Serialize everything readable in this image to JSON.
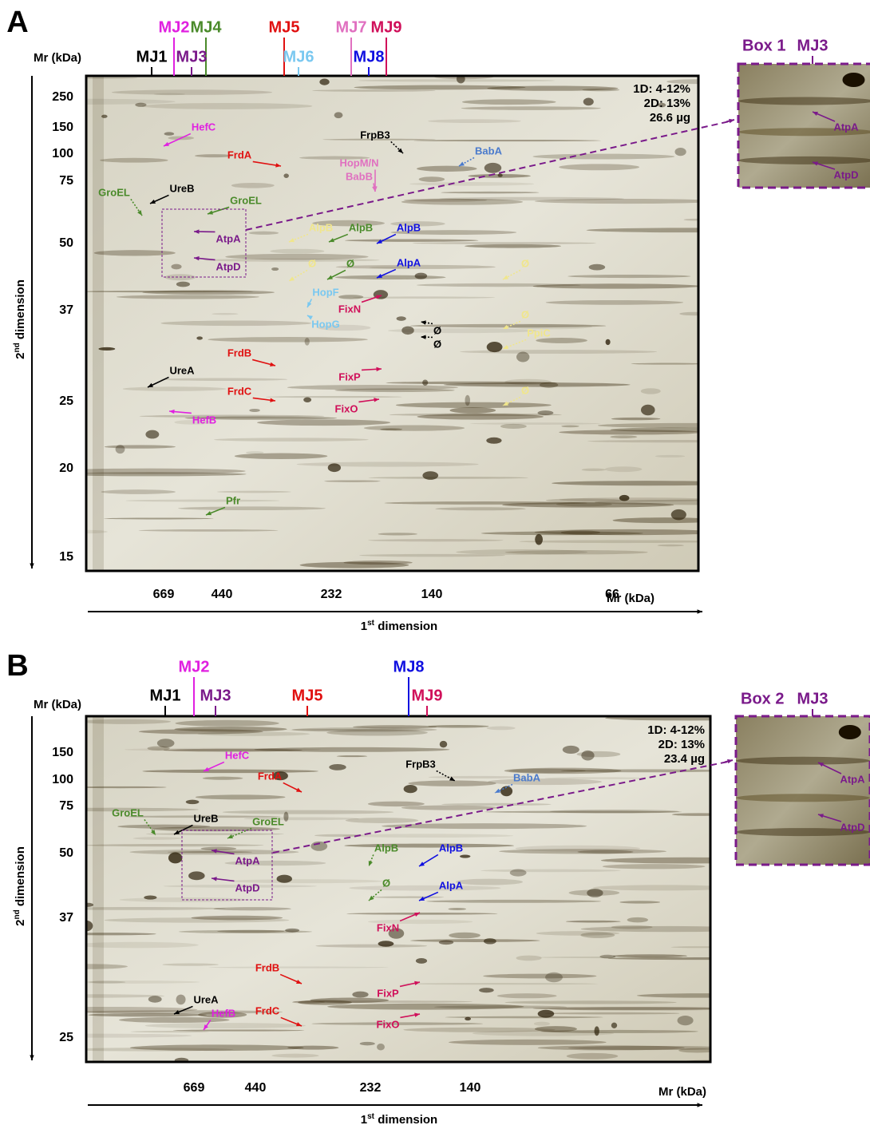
{
  "panels": [
    {
      "letter": "A",
      "mr_label": "Mr (kDa)",
      "y_ticks": [
        250,
        150,
        100,
        75,
        50,
        37,
        25,
        20,
        15
      ],
      "x_ticks": [
        669,
        440,
        232,
        140,
        66
      ],
      "x_axis_label": "Mr (kDa)",
      "x_dim": {
        "num": "1",
        "sup": "st",
        "text": " dimension"
      },
      "y_dim": {
        "num": "2",
        "sup": "nd",
        "text": " dimension"
      },
      "complexes": [
        {
          "label": "MJ2",
          "color": "#e020e0"
        },
        {
          "label": "MJ4",
          "color": "#4a8a2a"
        },
        {
          "label": "MJ5",
          "color": "#e01010"
        },
        {
          "label": "MJ7",
          "color": "#e070c0"
        },
        {
          "label": "MJ9",
          "color": "#d0105a"
        },
        {
          "label": "MJ1",
          "color": "#000000"
        },
        {
          "label": "MJ3",
          "color": "#7a1a8a"
        },
        {
          "label": "MJ6",
          "color": "#7ac8f0"
        },
        {
          "label": "MJ8",
          "color": "#1010e0"
        }
      ],
      "conditions": [
        "1D: 4-12%",
        "2D: 13%",
        "26.6 µg"
      ],
      "annotations": [
        {
          "text": "HefC",
          "color": "#e020e0"
        },
        {
          "text": "FrdA",
          "color": "#e01010"
        },
        {
          "text": "FrpB3",
          "color": "#000000"
        },
        {
          "text": "BabA",
          "color": "#4a7acc"
        },
        {
          "text": "HopM/N",
          "color": "#e070c0"
        },
        {
          "text": "BabB",
          "color": "#e070c0"
        },
        {
          "text": "GroEL",
          "color": "#4a8a2a"
        },
        {
          "text": "UreB",
          "color": "#000000"
        },
        {
          "text": "GroEL",
          "color": "#4a8a2a"
        },
        {
          "text": "AtpA",
          "color": "#7a1a8a"
        },
        {
          "text": "AtpD",
          "color": "#7a1a8a"
        },
        {
          "text": "AlpB",
          "color": "#f0e68c"
        },
        {
          "text": "AlpB",
          "color": "#4a8a2a"
        },
        {
          "text": "AlpB",
          "color": "#1010e0"
        },
        {
          "text": "Ø",
          "color": "#f0e68c"
        },
        {
          "text": "Ø",
          "color": "#4a8a2a"
        },
        {
          "text": "AlpA",
          "color": "#1010e0"
        },
        {
          "text": "Ø",
          "color": "#f0e68c"
        },
        {
          "text": "HopF",
          "color": "#7ac8f0"
        },
        {
          "text": "FixN",
          "color": "#d0105a"
        },
        {
          "text": "HopG",
          "color": "#7ac8f0"
        },
        {
          "text": "Ø",
          "color": "#f0e68c"
        },
        {
          "text": "Ø",
          "color": "#000000"
        },
        {
          "text": "Ø",
          "color": "#000000"
        },
        {
          "text": "PpiC",
          "color": "#f0e68c"
        },
        {
          "text": "FrdB",
          "color": "#e01010"
        },
        {
          "text": "FixP",
          "color": "#d0105a"
        },
        {
          "text": "UreA",
          "color": "#000000"
        },
        {
          "text": "FrdC",
          "color": "#e01010"
        },
        {
          "text": "Ø",
          "color": "#f0e68c"
        },
        {
          "text": "FixO",
          "color": "#d0105a"
        },
        {
          "text": "HefB",
          "color": "#e020e0"
        },
        {
          "text": "Pfr",
          "color": "#4a8a2a"
        }
      ],
      "box": {
        "title": "Box 1",
        "complex": "MJ3",
        "labels": [
          "AtpA",
          "AtpD"
        ]
      }
    },
    {
      "letter": "B",
      "mr_label": "Mr (kDa)",
      "y_ticks": [
        150,
        100,
        75,
        50,
        37,
        25
      ],
      "x_ticks": [
        669,
        440,
        232,
        140
      ],
      "x_axis_label": "Mr (kDa)",
      "x_dim": {
        "num": "1",
        "sup": "st",
        "text": " dimension"
      },
      "y_dim": {
        "num": "2",
        "sup": "nd",
        "text": " dimension"
      },
      "complexes": [
        {
          "label": "MJ2",
          "color": "#e020e0"
        },
        {
          "label": "MJ8",
          "color": "#1010e0"
        },
        {
          "label": "MJ1",
          "color": "#000000"
        },
        {
          "label": "MJ3",
          "color": "#7a1a8a"
        },
        {
          "label": "MJ5",
          "color": "#e01010"
        },
        {
          "label": "MJ9",
          "color": "#d0105a"
        }
      ],
      "conditions": [
        "1D: 4-12%",
        "2D: 13%",
        "23.4 µg"
      ],
      "annotations": [
        {
          "text": "HefC",
          "color": "#e020e0"
        },
        {
          "text": "FrdA",
          "color": "#e01010"
        },
        {
          "text": "FrpB3",
          "color": "#000000"
        },
        {
          "text": "BabA",
          "color": "#4a7acc"
        },
        {
          "text": "UreB",
          "color": "#000000"
        },
        {
          "text": "GroEL",
          "color": "#4a8a2a"
        },
        {
          "text": "GroEL",
          "color": "#4a8a2a"
        },
        {
          "text": "AtpA",
          "color": "#7a1a8a"
        },
        {
          "text": "AtpD",
          "color": "#7a1a8a"
        },
        {
          "text": "AlpB",
          "color": "#4a8a2a"
        },
        {
          "text": "AlpB",
          "color": "#1010e0"
        },
        {
          "text": "Ø",
          "color": "#4a8a2a"
        },
        {
          "text": "AlpA",
          "color": "#1010e0"
        },
        {
          "text": "FixN",
          "color": "#d0105a"
        },
        {
          "text": "FrdB",
          "color": "#e01010"
        },
        {
          "text": "FixP",
          "color": "#d0105a"
        },
        {
          "text": "UreA",
          "color": "#000000"
        },
        {
          "text": "FrdC",
          "color": "#e01010"
        },
        {
          "text": "HefB",
          "color": "#e020e0"
        },
        {
          "text": "FixO",
          "color": "#d0105a"
        }
      ],
      "box": {
        "title": "Box 2",
        "complex": "MJ3",
        "labels": [
          "AtpA",
          "AtpD"
        ]
      }
    }
  ]
}
